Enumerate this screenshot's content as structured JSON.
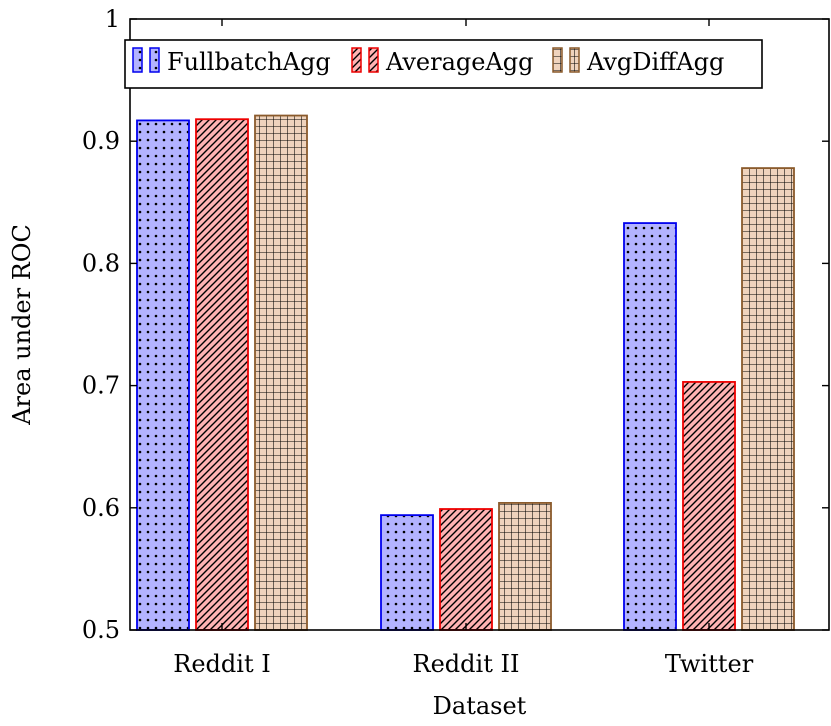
{
  "chart_data": {
    "type": "bar",
    "title": "",
    "xlabel": "Dataset",
    "ylabel": "Area under ROC",
    "categories": [
      "Reddit I",
      "Reddit II",
      "Twitter"
    ],
    "ylim": [
      0.5,
      1
    ],
    "yticks": [
      "0.5",
      "0.6",
      "0.7",
      "0.8",
      "0.9",
      "1"
    ],
    "legend_position": "top-left",
    "grid": false,
    "series": [
      {
        "name": "FullbatchAgg",
        "values": [
          0.917,
          0.594,
          0.833
        ],
        "fill": "#b3b3ff",
        "stroke": "#0000ee",
        "pattern": "dots"
      },
      {
        "name": "AverageAgg",
        "values": [
          0.918,
          0.599,
          0.703
        ],
        "fill": "#ffb3b3",
        "stroke": "#ee0000",
        "pattern": "hatch"
      },
      {
        "name": "AvgDiffAgg",
        "values": [
          0.921,
          0.604,
          0.878
        ],
        "fill": "#efd3bd",
        "stroke": "#8a5a2b",
        "pattern": "grid"
      }
    ]
  }
}
